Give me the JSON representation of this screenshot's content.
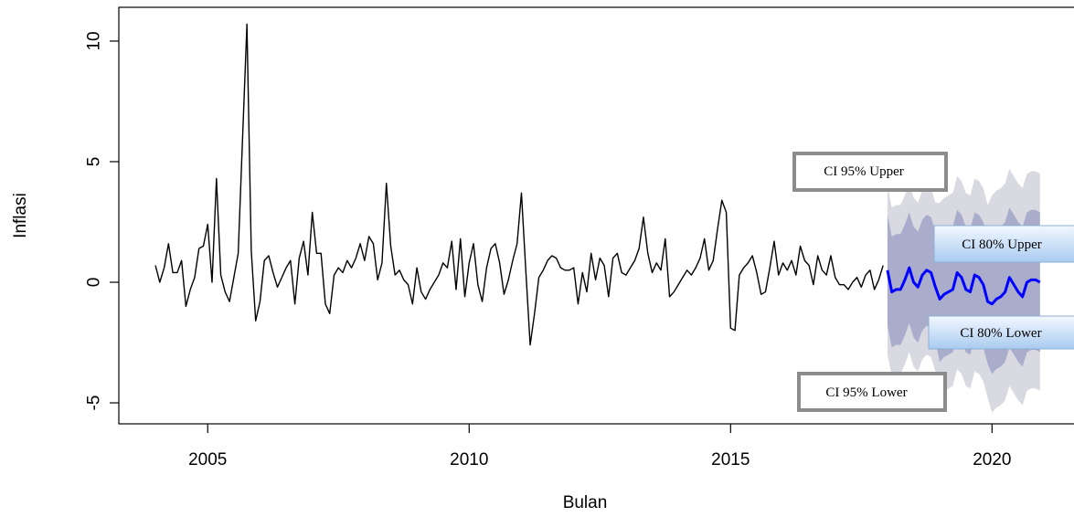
{
  "chart_data": {
    "type": "line",
    "xlabel": "Bulan",
    "ylabel": "Inflasi",
    "xlim": [
      2003.3,
      2021.55
    ],
    "ylim": [
      -5.87,
      11.4
    ],
    "xticks": [
      2005,
      2010,
      2015,
      2020
    ],
    "yticks": [
      -5,
      0,
      5,
      10
    ],
    "series": [
      {
        "color": "#000000",
        "x": [
          2004,
          2004.083,
          2004.167,
          2004.25,
          2004.333,
          2004.417,
          2004.5,
          2004.583,
          2004.667,
          2004.75,
          2004.833,
          2004.917,
          2005,
          2005.083,
          2005.167,
          2005.25,
          2005.333,
          2005.417,
          2005.5,
          2005.583,
          2005.667,
          2005.75,
          2005.833,
          2005.917,
          2006,
          2006.083,
          2006.167,
          2006.25,
          2006.333,
          2006.417,
          2006.5,
          2006.583,
          2006.667,
          2006.75,
          2006.833,
          2006.917,
          2007,
          2007.083,
          2007.167,
          2007.25,
          2007.333,
          2007.417,
          2007.5,
          2007.583,
          2007.667,
          2007.75,
          2007.833,
          2007.917,
          2008,
          2008.083,
          2008.167,
          2008.25,
          2008.333,
          2008.417,
          2008.5,
          2008.583,
          2008.667,
          2008.75,
          2008.833,
          2008.917,
          2009,
          2009.083,
          2009.167,
          2009.25,
          2009.333,
          2009.417,
          2009.5,
          2009.583,
          2009.667,
          2009.75,
          2009.833,
          2009.917,
          2010,
          2010.083,
          2010.167,
          2010.25,
          2010.333,
          2010.417,
          2010.5,
          2010.583,
          2010.667,
          2010.75,
          2010.833,
          2010.917,
          2011,
          2011.083,
          2011.167,
          2011.25,
          2011.333,
          2011.417,
          2011.5,
          2011.583,
          2011.667,
          2011.75,
          2011.833,
          2011.917,
          2012,
          2012.083,
          2012.167,
          2012.25,
          2012.333,
          2012.417,
          2012.5,
          2012.583,
          2012.667,
          2012.75,
          2012.833,
          2012.917,
          2013,
          2013.083,
          2013.167,
          2013.25,
          2013.333,
          2013.417,
          2013.5,
          2013.583,
          2013.667,
          2013.75,
          2013.833,
          2013.917,
          2014,
          2014.083,
          2014.167,
          2014.25,
          2014.333,
          2014.417,
          2014.5,
          2014.583,
          2014.667,
          2014.75,
          2014.833,
          2014.917,
          2015,
          2015.083,
          2015.167,
          2015.25,
          2015.333,
          2015.417,
          2015.5,
          2015.583,
          2015.667,
          2015.75,
          2015.833,
          2015.917,
          2016,
          2016.083,
          2016.167,
          2016.25,
          2016.333,
          2016.417,
          2016.5,
          2016.583,
          2016.667,
          2016.75,
          2016.833,
          2016.917,
          2017,
          2017.083,
          2017.167,
          2017.25,
          2017.333,
          2017.417,
          2017.5,
          2017.583,
          2017.667,
          2017.75,
          2017.833,
          2017.917
        ],
        "values": [
          0.7,
          0.0,
          0.6,
          1.6,
          0.4,
          0.4,
          0.9,
          -1.0,
          -0.3,
          0.2,
          1.4,
          1.5,
          2.4,
          0.0,
          4.3,
          0.3,
          -0.4,
          -0.8,
          0.2,
          1.2,
          6.0,
          10.7,
          1.3,
          -1.6,
          -0.8,
          0.9,
          1.1,
          0.4,
          -0.2,
          0.2,
          0.6,
          0.9,
          -0.9,
          1.0,
          1.7,
          0.3,
          2.9,
          1.2,
          1.2,
          -0.9,
          -1.3,
          0.3,
          0.6,
          0.4,
          0.9,
          0.6,
          1.0,
          1.6,
          0.9,
          1.9,
          1.6,
          0.1,
          0.8,
          4.1,
          1.5,
          0.3,
          0.5,
          0.1,
          -0.1,
          -0.9,
          0.6,
          -0.4,
          -0.7,
          -0.3,
          0.0,
          0.3,
          0.8,
          0.6,
          1.7,
          -0.3,
          1.8,
          -0.6,
          0.8,
          1.6,
          -0.1,
          -0.8,
          0.6,
          1.4,
          1.6,
          0.8,
          -0.5,
          0.1,
          0.9,
          1.6,
          3.7,
          0.5,
          -2.6,
          -1.3,
          0.2,
          0.5,
          0.9,
          1.1,
          1.0,
          0.6,
          0.5,
          0.5,
          0.6,
          -0.9,
          0.4,
          -0.4,
          1.2,
          0.1,
          1.0,
          0.7,
          -0.6,
          1.0,
          1.2,
          0.4,
          0.3,
          0.6,
          0.9,
          1.4,
          2.7,
          1.2,
          0.4,
          0.8,
          0.5,
          1.8,
          -0.6,
          -0.4,
          -0.1,
          0.2,
          0.5,
          0.3,
          0.6,
          1.0,
          1.8,
          0.5,
          0.9,
          2.2,
          3.4,
          2.9,
          -1.9,
          -2.0,
          0.3,
          0.6,
          0.8,
          1.1,
          0.4,
          -0.5,
          -0.4,
          0.6,
          1.7,
          0.3,
          0.8,
          0.5,
          0.9,
          0.3,
          1.5,
          0.9,
          0.7,
          -0.1,
          1.1,
          0.5,
          0.3,
          1.1,
          0.2,
          -0.1,
          -0.1,
          -0.3,
          0.0,
          0.2,
          -0.2,
          0.3,
          0.5,
          -0.3,
          0.1,
          0.7
        ]
      }
    ],
    "forecast": {
      "x": [
        2018,
        2018.083,
        2018.167,
        2018.25,
        2018.333,
        2018.417,
        2018.5,
        2018.583,
        2018.667,
        2018.75,
        2018.833,
        2018.917,
        2019,
        2019.083,
        2019.167,
        2019.25,
        2019.333,
        2019.417,
        2019.5,
        2019.583,
        2019.667,
        2019.75,
        2019.833,
        2019.917,
        2020,
        2020.083,
        2020.167,
        2020.25,
        2020.333,
        2020.417,
        2020.5,
        2020.583,
        2020.667,
        2020.75,
        2020.833,
        2020.917
      ],
      "mean": {
        "color": "#0000ff",
        "values": [
          0.5,
          -0.4,
          -0.3,
          -0.3,
          0.1,
          0.6,
          0.0,
          -0.2,
          0.3,
          0.5,
          0.4,
          -0.2,
          -0.7,
          -0.5,
          -0.4,
          -0.3,
          0.4,
          0.2,
          -0.3,
          -0.4,
          0.3,
          0.2,
          -0.1,
          -0.8,
          -0.9,
          -0.7,
          -0.6,
          -0.4,
          0.2,
          -0.1,
          -0.4,
          -0.6,
          0.0,
          0.1,
          0.1,
          0.0
        ]
      },
      "bands": [
        {
          "upper_name": "CI 95% Upper",
          "lower_name": "CI 95% Lower",
          "color": "#d9d9e2",
          "upper": [
            4.0,
            3.1,
            3.2,
            3.2,
            3.6,
            4.1,
            3.5,
            3.3,
            3.8,
            4.0,
            3.9,
            3.3,
            3.3,
            3.5,
            3.6,
            3.7,
            4.4,
            4.2,
            3.7,
            3.6,
            4.3,
            4.2,
            3.9,
            3.2,
            3.6,
            3.8,
            3.9,
            4.1,
            4.7,
            4.4,
            4.1,
            3.9,
            4.5,
            4.6,
            4.6,
            4.5
          ],
          "lower": [
            -3.0,
            -3.9,
            -3.8,
            -3.8,
            -3.4,
            -2.9,
            -3.5,
            -3.7,
            -3.2,
            -3.0,
            -3.1,
            -3.7,
            -4.7,
            -4.5,
            -4.4,
            -4.3,
            -3.6,
            -3.8,
            -4.3,
            -4.4,
            -3.7,
            -3.8,
            -4.1,
            -4.8,
            -5.4,
            -5.2,
            -5.1,
            -4.9,
            -4.3,
            -4.6,
            -4.9,
            -5.1,
            -4.5,
            -4.4,
            -4.4,
            -4.5
          ]
        },
        {
          "upper_name": "CI 80% Upper",
          "lower_name": "CI 80% Lower",
          "color": "#a9adcb",
          "upper": [
            2.8,
            1.9,
            2.0,
            2.0,
            2.4,
            2.9,
            2.3,
            2.1,
            2.6,
            2.8,
            2.7,
            2.1,
            1.9,
            2.1,
            2.2,
            2.3,
            3.0,
            2.8,
            2.3,
            2.2,
            2.9,
            2.8,
            2.5,
            1.8,
            2.0,
            2.2,
            2.3,
            2.5,
            3.1,
            2.8,
            2.5,
            2.3,
            2.9,
            3.0,
            3.0,
            2.9
          ],
          "lower": [
            -1.8,
            -2.7,
            -2.6,
            -2.6,
            -2.2,
            -1.7,
            -2.3,
            -2.5,
            -2.0,
            -1.8,
            -1.9,
            -2.5,
            -3.3,
            -3.1,
            -3.0,
            -2.9,
            -2.2,
            -2.4,
            -2.9,
            -3.0,
            -2.3,
            -2.4,
            -2.7,
            -3.4,
            -3.8,
            -3.6,
            -3.5,
            -3.3,
            -2.7,
            -3.0,
            -3.3,
            -3.5,
            -2.9,
            -2.8,
            -2.8,
            -2.9
          ]
        }
      ]
    }
  }
}
